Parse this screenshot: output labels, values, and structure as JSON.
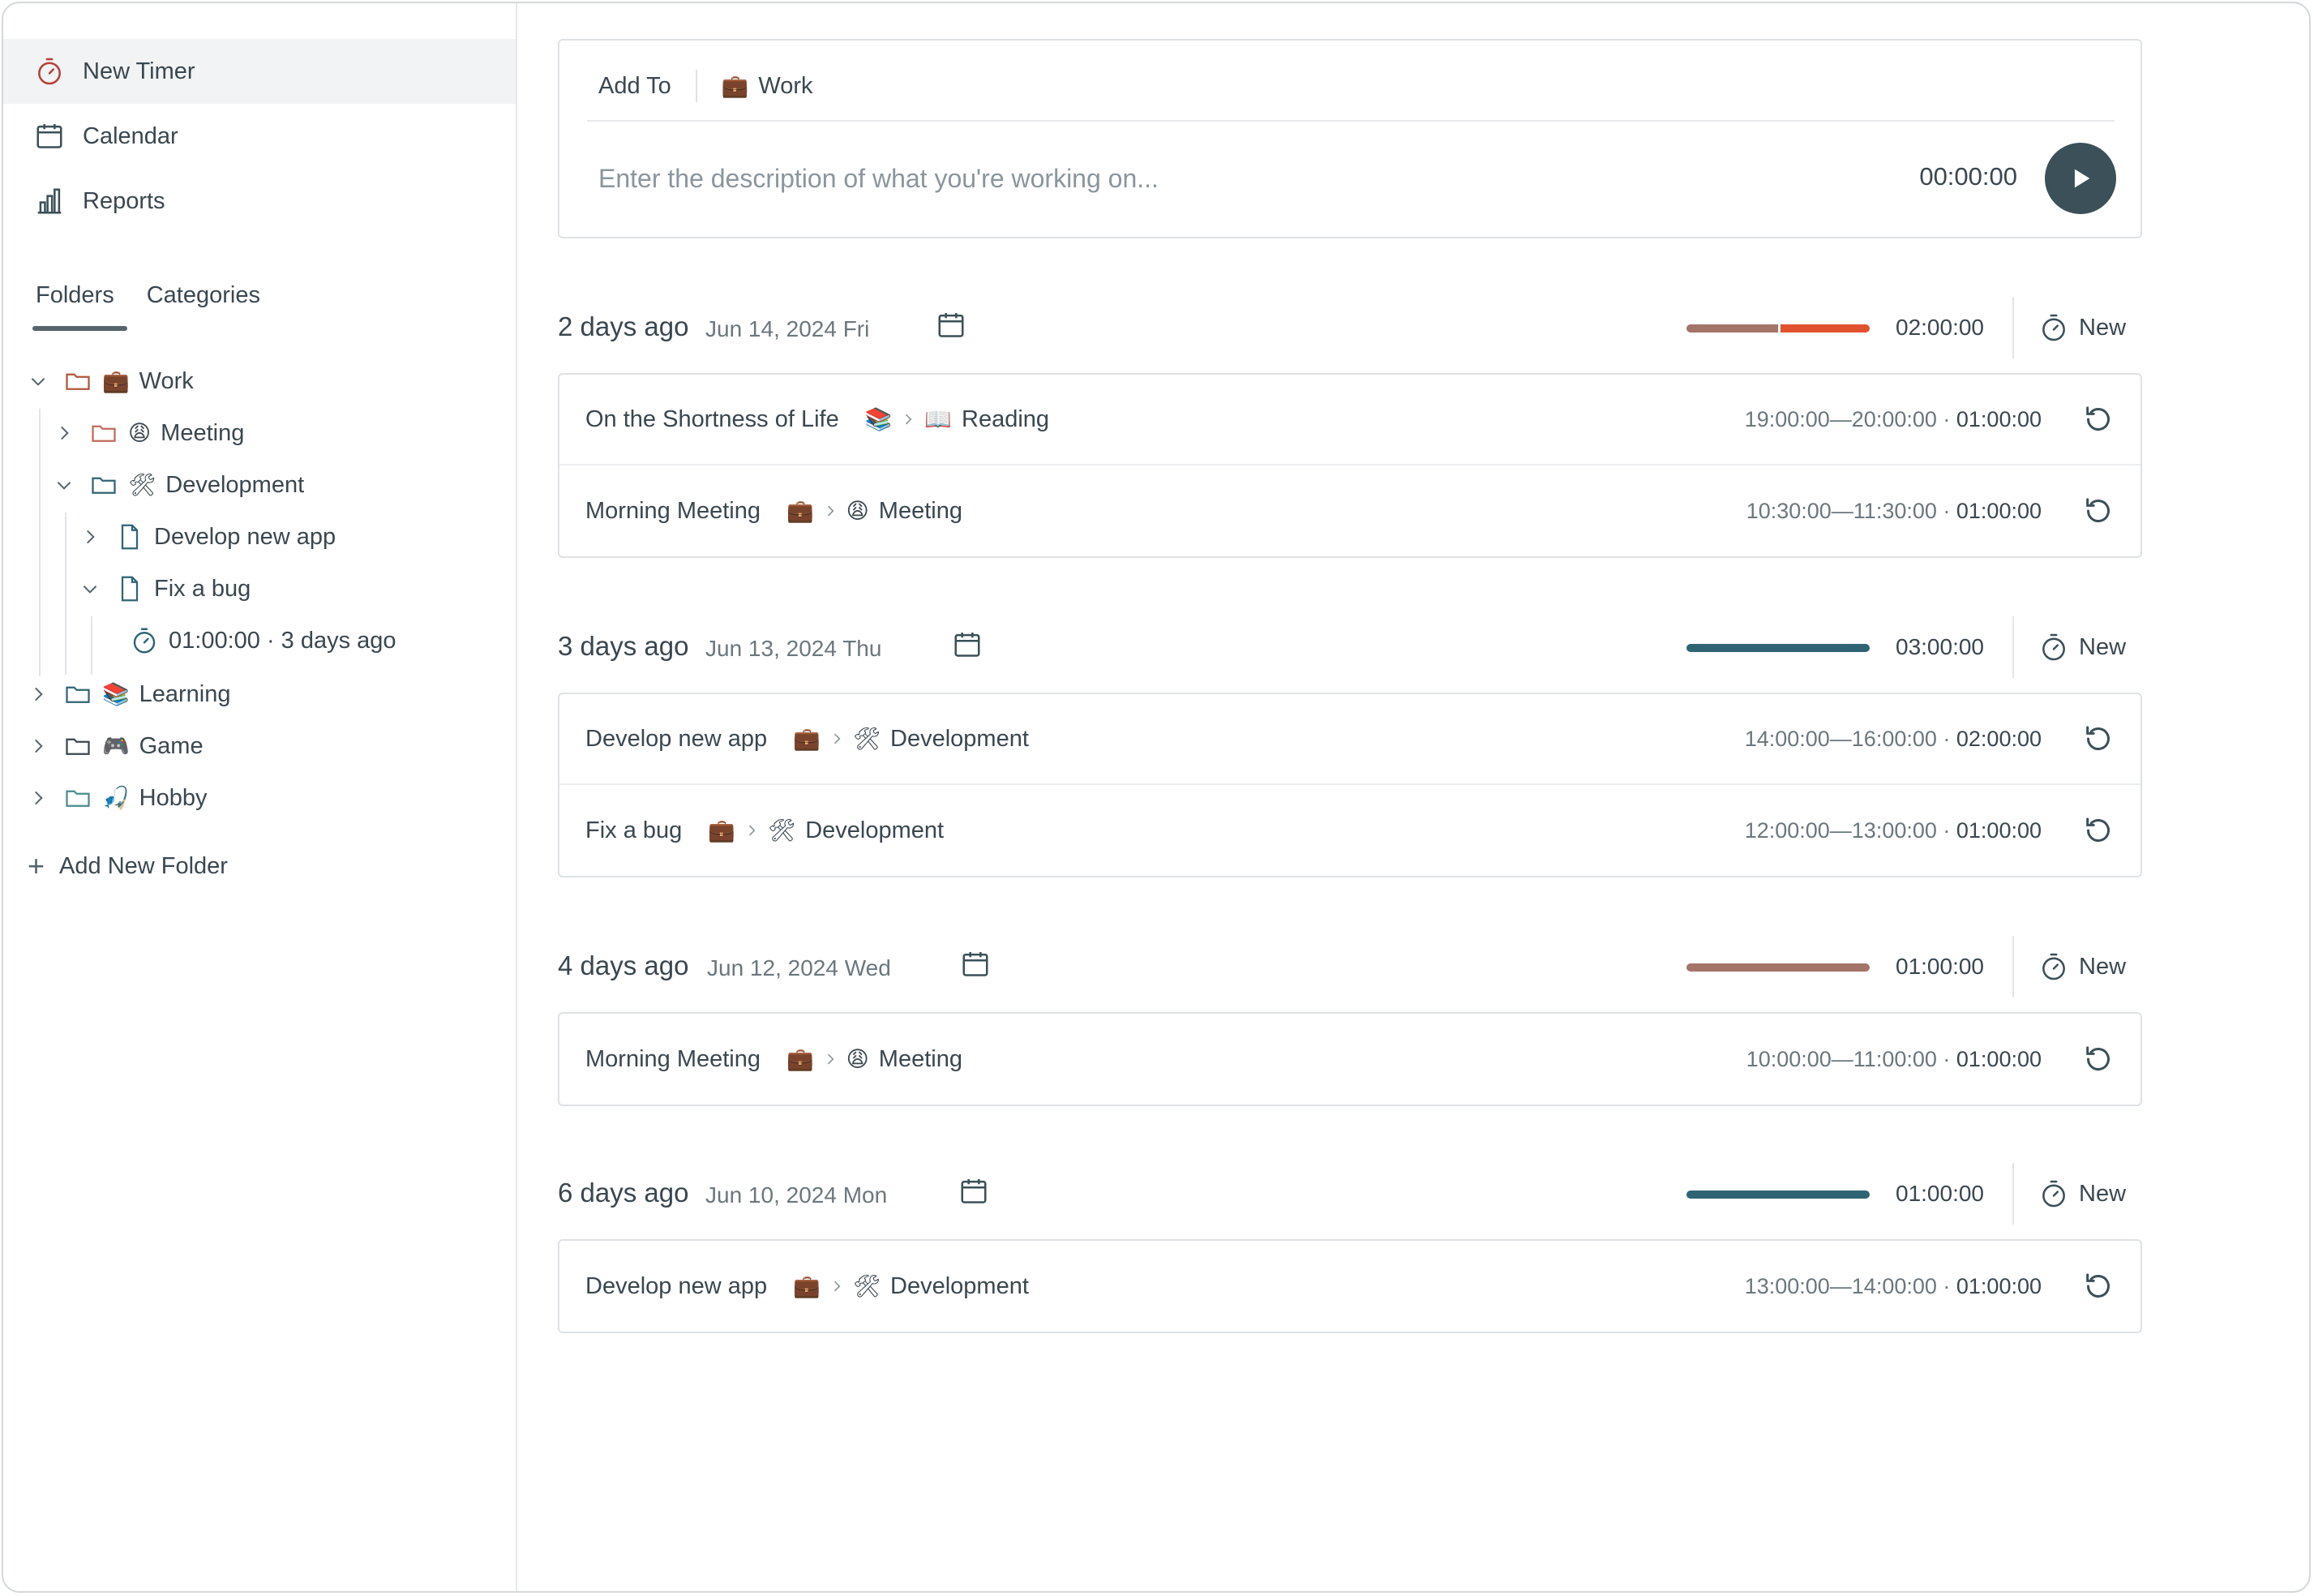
{
  "sidebar": {
    "nav": [
      {
        "label": "New Timer",
        "icon": "stopwatch-icon"
      },
      {
        "label": "Calendar",
        "icon": "calendar-icon"
      },
      {
        "label": "Reports",
        "icon": "bar-chart-icon"
      }
    ],
    "tabs": [
      "Folders",
      "Categories"
    ],
    "tree": {
      "work": {
        "emoji": "💼",
        "label": "Work"
      },
      "meeting": {
        "emoji": "😩",
        "label": "Meeting"
      },
      "development": {
        "emoji": "🛠",
        "label": "Development"
      },
      "develop_new_app": {
        "label": "Develop new app"
      },
      "fix_a_bug": {
        "label": "Fix a bug"
      },
      "fix_a_bug_timer": {
        "label": "01:00:00 · 3 days ago"
      },
      "learning": {
        "emoji": "📚",
        "label": "Learning"
      },
      "game": {
        "emoji": "🎮",
        "label": "Game"
      },
      "hobby": {
        "emoji": "🎣",
        "label": "Hobby"
      }
    },
    "add_folder_label": "Add New Folder"
  },
  "entry": {
    "add_to_label": "Add To",
    "folder_emoji": "💼",
    "folder_label": "Work",
    "placeholder": "Enter the description of what you're working on...",
    "timer": "00:00:00"
  },
  "colors": {
    "work": "#a47468",
    "learning": "#e0532d",
    "primary": "#3b5058",
    "development": "#2f6474"
  },
  "days": [
    {
      "relative": "2 days ago",
      "date": "Jun 14, 2024 Fri",
      "total": "02:00:00",
      "new_label": "New",
      "bar": [
        {
          "color": "#a47468",
          "fraction": 0.5
        },
        {
          "color": "#e0532d",
          "fraction": 0.5
        }
      ],
      "entries": [
        {
          "title": "On the Shortness of Life",
          "folder_emoji": "📚",
          "sub_emoji": "📖",
          "sub_label": "Reading",
          "range": "19:00:00—20:00:00",
          "duration": "01:00:00"
        },
        {
          "title": "Morning Meeting",
          "folder_emoji": "💼",
          "sub_emoji": "😩",
          "sub_label": "Meeting",
          "range": "10:30:00—11:30:00",
          "duration": "01:00:00"
        }
      ]
    },
    {
      "relative": "3 days ago",
      "date": "Jun 13, 2024 Thu",
      "total": "03:00:00",
      "new_label": "New",
      "bar": [
        {
          "color": "#2f6474",
          "fraction": 1.0
        }
      ],
      "entries": [
        {
          "title": "Develop new app",
          "folder_emoji": "💼",
          "sub_emoji": "🛠",
          "sub_label": "Development",
          "range": "14:00:00—16:00:00",
          "duration": "02:00:00"
        },
        {
          "title": "Fix a bug",
          "folder_emoji": "💼",
          "sub_emoji": "🛠",
          "sub_label": "Development",
          "range": "12:00:00—13:00:00",
          "duration": "01:00:00"
        }
      ]
    },
    {
      "relative": "4 days ago",
      "date": "Jun 12, 2024 Wed",
      "total": "01:00:00",
      "new_label": "New",
      "bar": [
        {
          "color": "#a47468",
          "fraction": 1.0
        }
      ],
      "entries": [
        {
          "title": "Morning Meeting",
          "folder_emoji": "💼",
          "sub_emoji": "😩",
          "sub_label": "Meeting",
          "range": "10:00:00—11:00:00",
          "duration": "01:00:00"
        }
      ]
    },
    {
      "relative": "6 days ago",
      "date": "Jun 10, 2024 Mon",
      "total": "01:00:00",
      "new_label": "New",
      "bar": [
        {
          "color": "#2f6474",
          "fraction": 1.0
        }
      ],
      "entries": [
        {
          "title": "Develop new app",
          "folder_emoji": "💼",
          "sub_emoji": "🛠",
          "sub_label": "Development",
          "range": "13:00:00—14:00:00",
          "duration": "01:00:00"
        }
      ]
    }
  ]
}
